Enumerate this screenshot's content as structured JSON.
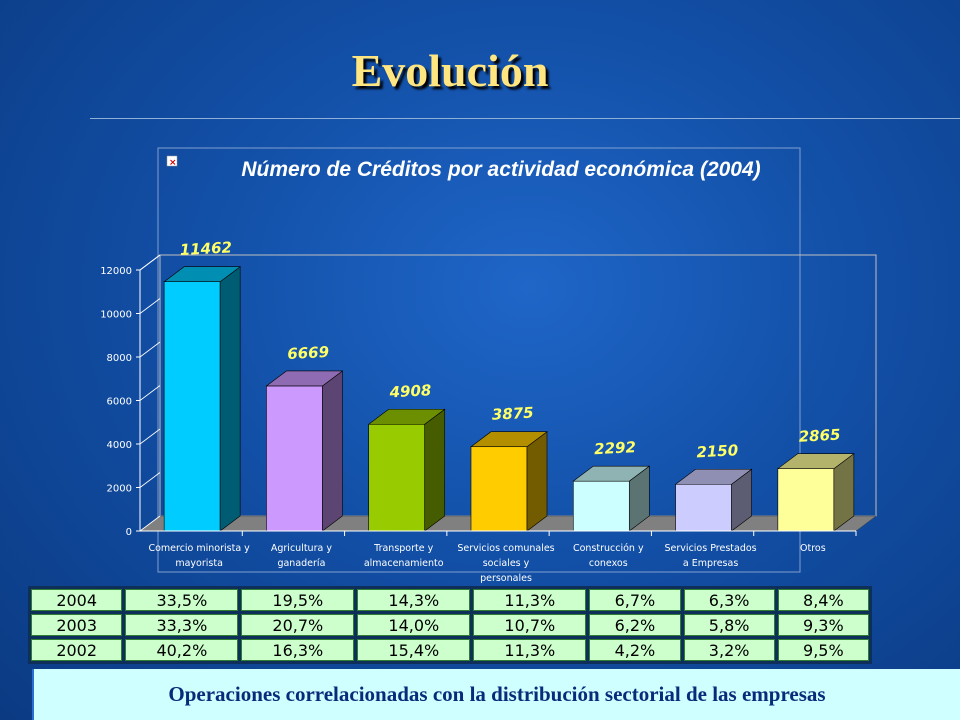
{
  "slide": {
    "title": "Evolución",
    "footer": "Operaciones correlacionadas con la distribución sectorial de las empresas"
  },
  "chart_data": {
    "type": "bar",
    "title": "Número de Créditos por actividad económica (2004)",
    "categories": [
      [
        "Comercio minorista y",
        "mayorista"
      ],
      [
        "Agricultura y",
        "ganadería"
      ],
      [
        "Transporte y",
        "almacenamiento"
      ],
      [
        "Servicios comunales",
        "sociales y",
        "personales"
      ],
      [
        "Construcción y",
        "conexos"
      ],
      [
        "Servicios Prestados",
        "a Empresas"
      ],
      [
        "Otros"
      ]
    ],
    "values": [
      11462,
      6669,
      4908,
      3875,
      2292,
      2150,
      2865
    ],
    "ylim": [
      0,
      12000
    ],
    "yticks": [
      0,
      2000,
      4000,
      6000,
      8000,
      10000,
      12000
    ],
    "colors": [
      "#00ccff",
      "#cc99ff",
      "#99cc00",
      "#ffcc00",
      "#ccffff",
      "#ccccff",
      "#ffff99"
    ]
  },
  "table": {
    "rows": [
      [
        "2004",
        "33,5%",
        "19,5%",
        "14,3%",
        "11,3%",
        "6,7%",
        "6,3%",
        "8,4%"
      ],
      [
        "2003",
        "33,3%",
        "20,7%",
        "14,0%",
        "10,7%",
        "6,2%",
        "5,8%",
        "9,3%"
      ],
      [
        "2002",
        "40,2%",
        "16,3%",
        "15,4%",
        "11,3%",
        "4,2%",
        "3,2%",
        "9,5%"
      ]
    ]
  }
}
